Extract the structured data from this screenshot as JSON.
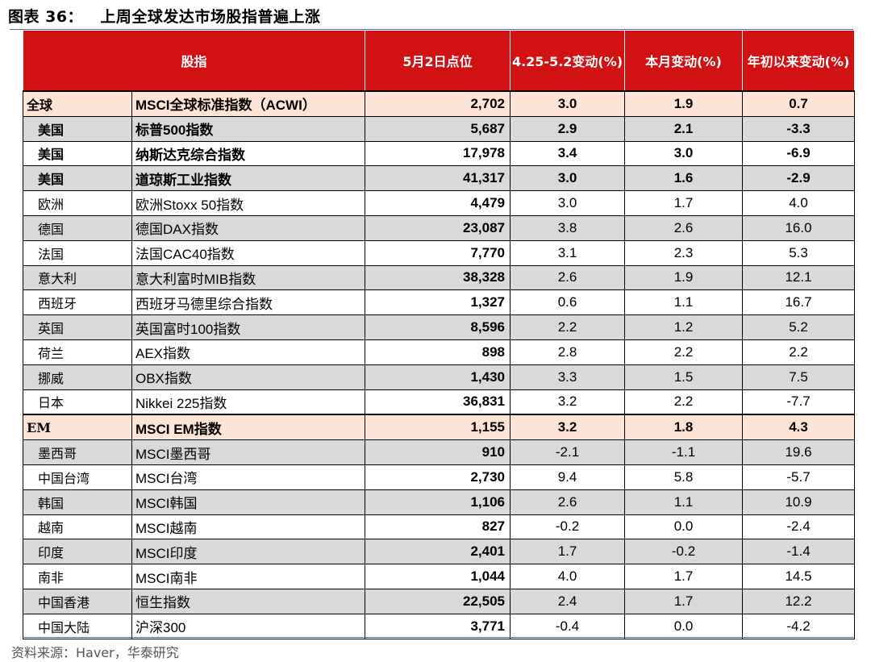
{
  "title": "图表 36：   上周全球发达市场股指普遍上涨",
  "headers": {
    "index": "股指",
    "level": "5月2日点位",
    "week_change": "4.25-5.2变动(%)",
    "month_change": "本月变动(%)",
    "ytd_change": "年初以来变动(%)"
  },
  "rows": [
    {
      "region": "全球",
      "index": "MSCI全球标准指数（ACWI）",
      "level": "2,702",
      "week": "3.0",
      "month": "1.9",
      "ytd": "0.7",
      "style": "group"
    },
    {
      "region": "美国",
      "index": "标普500指数",
      "level": "5,687",
      "week": "2.9",
      "month": "2.1",
      "ytd": "-3.3",
      "style": "alt-bold"
    },
    {
      "region": "美国",
      "index": "纳斯达克综合指数",
      "level": "17,978",
      "week": "3.4",
      "month": "3.0",
      "ytd": "-6.9",
      "style": "bold"
    },
    {
      "region": "美国",
      "index": "道琼斯工业指数",
      "level": "41,317",
      "week": "3.0",
      "month": "1.6",
      "ytd": "-2.9",
      "style": "alt-bold"
    },
    {
      "region": "欧洲",
      "index": "欧洲Stoxx 50指数",
      "level": "4,479",
      "week": "3.0",
      "month": "1.7",
      "ytd": "4.0",
      "style": "plain"
    },
    {
      "region": "德国",
      "index": "德国DAX指数",
      "level": "23,087",
      "week": "3.8",
      "month": "2.6",
      "ytd": "16.0",
      "style": "alt"
    },
    {
      "region": "法国",
      "index": "法国CAC40指数",
      "level": "7,770",
      "week": "3.1",
      "month": "2.3",
      "ytd": "5.3",
      "style": "plain"
    },
    {
      "region": "意大利",
      "index": "意大利富时MIB指数",
      "level": "38,328",
      "week": "2.6",
      "month": "1.9",
      "ytd": "12.1",
      "style": "alt"
    },
    {
      "region": "西班牙",
      "index": "西班牙马德里综合指数",
      "level": "1,327",
      "week": "0.6",
      "month": "1.1",
      "ytd": "16.7",
      "style": "plain"
    },
    {
      "region": "英国",
      "index": "英国富时100指数",
      "level": "8,596",
      "week": "2.2",
      "month": "1.2",
      "ytd": "5.2",
      "style": "alt"
    },
    {
      "region": "荷兰",
      "index": "AEX指数",
      "level": "898",
      "week": "2.8",
      "month": "2.2",
      "ytd": "2.2",
      "style": "plain"
    },
    {
      "region": "挪威",
      "index": "OBX指数",
      "level": "1,430",
      "week": "3.3",
      "month": "1.5",
      "ytd": "7.5",
      "style": "alt"
    },
    {
      "region": "日本",
      "index": "Nikkei 225指数",
      "level": "36,831",
      "week": "3.2",
      "month": "2.2",
      "ytd": "-7.7",
      "style": "plain"
    },
    {
      "region": "EM",
      "index": "MSCI EM指数",
      "level": "1,155",
      "week": "3.2",
      "month": "1.8",
      "ytd": "4.3",
      "style": "group"
    },
    {
      "region": "墨西哥",
      "index": "MSCI墨西哥",
      "level": "910",
      "week": "-2.1",
      "month": "-1.1",
      "ytd": "19.6",
      "style": "alt"
    },
    {
      "region": "中国台湾",
      "index": "MSCI台湾",
      "level": "2,730",
      "week": "9.4",
      "month": "5.8",
      "ytd": "-5.7",
      "style": "plain"
    },
    {
      "region": "韩国",
      "index": "MSCI韩国",
      "level": "1,106",
      "week": "2.6",
      "month": "1.1",
      "ytd": "10.9",
      "style": "alt"
    },
    {
      "region": "越南",
      "index": "MSCI越南",
      "level": "827",
      "week": "-0.2",
      "month": "0.0",
      "ytd": "-2.4",
      "style": "plain"
    },
    {
      "region": "印度",
      "index": "MSCI印度",
      "level": "2,401",
      "week": "1.7",
      "month": "-0.2",
      "ytd": "-1.4",
      "style": "alt"
    },
    {
      "region": "南非",
      "index": "MSCI南非",
      "level": "1,044",
      "week": "4.0",
      "month": "1.7",
      "ytd": "14.5",
      "style": "plain"
    },
    {
      "region": "中国香港",
      "index": "恒生指数",
      "level": "22,505",
      "week": "2.4",
      "month": "1.7",
      "ytd": "12.2",
      "style": "alt"
    },
    {
      "region": "中国大陆",
      "index": "沪深300",
      "level": "3,771",
      "week": "-0.4",
      "month": "0.0",
      "ytd": "-4.2",
      "style": "plain"
    }
  ],
  "source": "资料来源：Haver，华泰研究",
  "colors": {
    "header_bg": "#d21212",
    "group_bg": "#fde4d6",
    "alt_bg": "#d9d9d9"
  }
}
